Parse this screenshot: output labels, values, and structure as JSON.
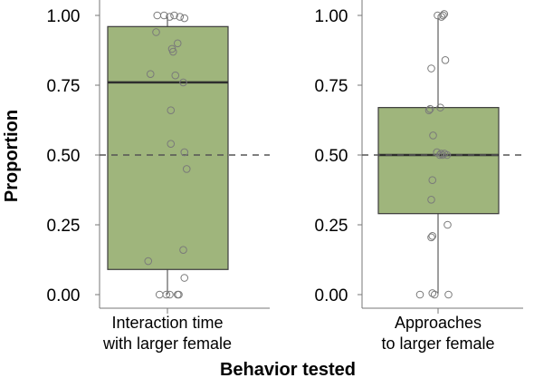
{
  "chart_data": [
    {
      "type": "boxplot",
      "ylabel": "Proportion",
      "ylim": [
        0,
        1
      ],
      "yticks": [
        "0.00",
        "0.25",
        "0.50",
        "0.75",
        "1.00"
      ],
      "yticks_values": [
        0,
        0.25,
        0.5,
        0.75,
        1.0
      ],
      "reference_line": 0.5,
      "box": {
        "q1": 0.09,
        "median": 0.76,
        "q3": 0.96,
        "whisker_low": 0.0,
        "whisker_high": 1.0
      },
      "category_lines": [
        "Interaction time",
        "with larger female"
      ],
      "points": [
        {
          "jitter": -0.45,
          "y": 1.0
        },
        {
          "jitter": -0.15,
          "y": 1.0
        },
        {
          "jitter": 0.1,
          "y": 0.995
        },
        {
          "jitter": 0.3,
          "y": 1.0
        },
        {
          "jitter": 0.55,
          "y": 0.995
        },
        {
          "jitter": 0.75,
          "y": 0.99
        },
        {
          "jitter": -0.5,
          "y": 0.94
        },
        {
          "jitter": 0.45,
          "y": 0.9
        },
        {
          "jitter": 0.2,
          "y": 0.88
        },
        {
          "jitter": 0.25,
          "y": 0.87
        },
        {
          "jitter": -0.75,
          "y": 0.79
        },
        {
          "jitter": 0.35,
          "y": 0.785
        },
        {
          "jitter": 0.7,
          "y": 0.76
        },
        {
          "jitter": 0.15,
          "y": 0.66
        },
        {
          "jitter": 0.15,
          "y": 0.54
        },
        {
          "jitter": 0.75,
          "y": 0.51
        },
        {
          "jitter": 0.85,
          "y": 0.45
        },
        {
          "jitter": 0.7,
          "y": 0.16
        },
        {
          "jitter": -0.85,
          "y": 0.12
        },
        {
          "jitter": 0.75,
          "y": 0.06
        },
        {
          "jitter": -0.35,
          "y": 0.0
        },
        {
          "jitter": -0.05,
          "y": 0.0
        },
        {
          "jitter": 0.1,
          "y": 0.0
        },
        {
          "jitter": 0.45,
          "y": 0.0
        },
        {
          "jitter": 0.5,
          "y": 0.0
        }
      ]
    },
    {
      "type": "boxplot",
      "ylabel": "",
      "ylim": [
        0,
        1
      ],
      "yticks": [
        "0.00",
        "0.25",
        "0.50",
        "0.75",
        "1.00"
      ],
      "yticks_values": [
        0,
        0.25,
        0.5,
        0.75,
        1.0
      ],
      "reference_line": 0.5,
      "box": {
        "q1": 0.29,
        "median": 0.5,
        "q3": 0.67,
        "whisker_low": 0.0,
        "whisker_high": 1.0
      },
      "category_lines": [
        "Approaches",
        "to larger female"
      ],
      "points": [
        {
          "jitter": -0.02,
          "y": 1.0
        },
        {
          "jitter": 0.15,
          "y": 0.995
        },
        {
          "jitter": 0.22,
          "y": 1.0
        },
        {
          "jitter": 0.27,
          "y": 1.005
        },
        {
          "jitter": 0.32,
          "y": 0.84
        },
        {
          "jitter": -0.3,
          "y": 0.81
        },
        {
          "jitter": 0.1,
          "y": 0.67
        },
        {
          "jitter": -0.4,
          "y": 0.66
        },
        {
          "jitter": -0.35,
          "y": 0.665
        },
        {
          "jitter": -0.22,
          "y": 0.57
        },
        {
          "jitter": -0.05,
          "y": 0.51
        },
        {
          "jitter": 0.08,
          "y": 0.5
        },
        {
          "jitter": 0.13,
          "y": 0.505
        },
        {
          "jitter": 0.2,
          "y": 0.5
        },
        {
          "jitter": 0.28,
          "y": 0.505
        },
        {
          "jitter": 0.4,
          "y": 0.5
        },
        {
          "jitter": -0.25,
          "y": 0.41
        },
        {
          "jitter": -0.3,
          "y": 0.34
        },
        {
          "jitter": 0.42,
          "y": 0.25
        },
        {
          "jitter": -0.25,
          "y": 0.21
        },
        {
          "jitter": -0.3,
          "y": 0.205
        },
        {
          "jitter": 0.46,
          "y": 0.0
        },
        {
          "jitter": -0.8,
          "y": 0.0
        },
        {
          "jitter": -0.25,
          "y": 0.005
        },
        {
          "jitter": -0.15,
          "y": 0.0
        }
      ]
    }
  ],
  "xlabel": "Behavior tested",
  "colors": {
    "box_fill": "#9fb57c",
    "box_stroke": "#3c3c3c",
    "median": "#2e2e2e",
    "point_stroke": "#7a7a7a",
    "reference_line": "#555555",
    "axis": "#777777"
  }
}
